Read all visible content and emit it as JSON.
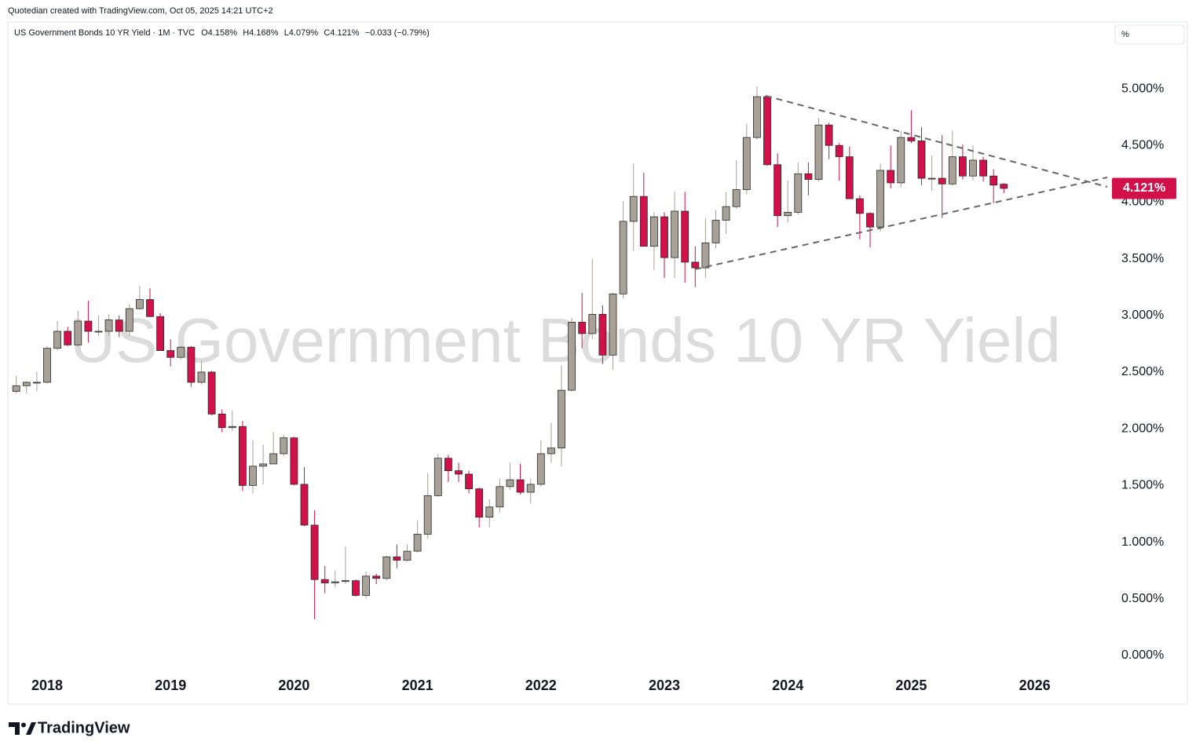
{
  "header": {
    "credit": "Quotedian created with TradingView.com, Oct 05, 2025 14:21 UTC+2",
    "footer_brand": "TradingView"
  },
  "chart_data": {
    "type": "candlestick",
    "legend": {
      "symbol": "US Government Bonds 10 YR Yield · 1M · TVC",
      "ohlc_labels": [
        "O4.158%",
        "H4.168%",
        "L4.079%",
        "C4.121%"
      ],
      "change": "−0.033 (−0.79%)"
    },
    "watermark": "US Government Bonds 10 YR Yield",
    "unit_label": "%",
    "last_price_label": "4.121%",
    "up_color": "#a8a197",
    "down_color": "#d2114a",
    "last_price_color": "#d2114a",
    "categories": [
      null,
      null,
      null,
      "2018",
      null,
      null,
      null,
      null,
      null,
      null,
      null,
      null,
      null,
      null,
      null,
      "2019",
      null,
      null,
      null,
      null,
      null,
      null,
      null,
      null,
      null,
      null,
      null,
      "2020",
      null,
      null,
      null,
      null,
      null,
      null,
      null,
      null,
      null,
      null,
      null,
      "2021",
      null,
      null,
      null,
      null,
      null,
      null,
      null,
      null,
      null,
      null,
      null,
      "2022",
      null,
      null,
      null,
      null,
      null,
      null,
      null,
      null,
      null,
      null,
      null,
      "2023",
      null,
      null,
      null,
      null,
      null,
      null,
      null,
      null,
      null,
      null,
      null,
      "2024",
      null,
      null,
      null,
      null,
      null,
      null,
      null,
      null,
      null,
      null,
      null,
      "2025",
      null,
      null,
      null,
      null,
      null,
      null,
      null,
      null,
      null,
      null,
      null,
      "2026"
    ],
    "series": [
      {
        "name": "US Government Bonds 10 YR Yield",
        "open": [
          2.33,
          2.38,
          2.41,
          2.41,
          2.71,
          2.86,
          2.74,
          2.95,
          2.86,
          2.86,
          2.96,
          2.86,
          3.06,
          3.14,
          2.99,
          2.69,
          2.63,
          2.72,
          2.41,
          2.5,
          2.13,
          2.01,
          2.02,
          1.5,
          1.67,
          1.69,
          1.78,
          1.92,
          1.51,
          1.15,
          0.67,
          0.64,
          0.66,
          0.66,
          0.53,
          0.7,
          0.68,
          0.87,
          0.84,
          0.92,
          1.07,
          1.41,
          1.74,
          1.63,
          1.6,
          1.47,
          1.22,
          1.31,
          1.49,
          1.55,
          1.44,
          1.51,
          1.78,
          1.83,
          2.34,
          2.94,
          2.84,
          3.01,
          2.65,
          3.19,
          3.83,
          4.05,
          3.61,
          3.87,
          3.51,
          3.92,
          3.47,
          3.42,
          3.64,
          3.84,
          3.96,
          4.11,
          4.57,
          4.93,
          4.33,
          3.88,
          3.91,
          4.25,
          4.2,
          4.68,
          4.5,
          4.4,
          4.03,
          3.9,
          3.78,
          4.28,
          4.17,
          4.57,
          4.54,
          4.21,
          4.21,
          4.16,
          4.4,
          4.23,
          4.37,
          4.23,
          4.158,
          null,
          null,
          null
        ],
        "high": [
          2.47,
          2.42,
          2.5,
          2.73,
          2.95,
          2.9,
          3.04,
          3.13,
          3.0,
          3.01,
          3.0,
          3.1,
          3.26,
          3.24,
          3.02,
          2.79,
          2.73,
          2.73,
          2.6,
          2.51,
          2.17,
          2.16,
          2.07,
          1.9,
          1.86,
          1.97,
          1.95,
          1.93,
          1.66,
          1.28,
          0.79,
          0.75,
          0.96,
          0.67,
          0.74,
          0.72,
          0.88,
          0.98,
          0.98,
          1.19,
          1.61,
          1.78,
          1.77,
          1.7,
          1.63,
          1.48,
          1.38,
          1.56,
          1.7,
          1.69,
          1.56,
          1.9,
          2.05,
          2.56,
          2.98,
          3.2,
          3.5,
          3.09,
          3.2,
          4.01,
          4.34,
          4.26,
          3.91,
          3.91,
          4.09,
          4.09,
          3.61,
          3.86,
          3.93,
          4.09,
          4.37,
          4.69,
          5.02,
          4.93,
          4.43,
          4.19,
          4.35,
          4.35,
          4.74,
          4.7,
          4.52,
          4.49,
          4.06,
          3.91,
          4.34,
          4.5,
          4.63,
          4.81,
          4.66,
          4.41,
          4.59,
          4.63,
          4.51,
          4.5,
          4.4,
          4.29,
          4.168,
          null,
          null,
          null
        ],
        "low": [
          2.31,
          2.31,
          2.33,
          2.4,
          2.69,
          2.73,
          2.73,
          2.76,
          2.82,
          2.82,
          2.81,
          2.82,
          3.05,
          2.99,
          2.69,
          2.55,
          2.61,
          2.37,
          2.39,
          2.12,
          1.97,
          1.98,
          1.45,
          1.43,
          1.51,
          1.69,
          1.76,
          1.5,
          1.14,
          0.32,
          0.55,
          0.6,
          0.63,
          0.52,
          0.5,
          0.63,
          0.66,
          0.77,
          0.83,
          0.91,
          1.03,
          1.4,
          1.53,
          1.53,
          1.43,
          1.13,
          1.13,
          1.26,
          1.46,
          1.42,
          1.34,
          1.49,
          1.7,
          1.67,
          2.33,
          2.71,
          2.79,
          2.57,
          2.52,
          3.15,
          3.57,
          3.61,
          3.4,
          3.33,
          3.33,
          3.29,
          3.25,
          3.33,
          3.59,
          3.72,
          3.94,
          4.07,
          4.55,
          4.32,
          3.78,
          3.82,
          3.89,
          4.06,
          4.18,
          4.38,
          4.19,
          4.03,
          3.67,
          3.6,
          3.74,
          4.12,
          4.13,
          4.52,
          4.15,
          4.1,
          3.86,
          4.14,
          4.2,
          4.19,
          4.18,
          3.99,
          4.079,
          null,
          null,
          null
        ],
        "close": [
          2.38,
          2.41,
          2.41,
          2.71,
          2.86,
          2.74,
          2.95,
          2.86,
          2.86,
          2.96,
          2.86,
          3.06,
          3.14,
          2.99,
          2.69,
          2.63,
          2.72,
          2.41,
          2.5,
          2.13,
          2.01,
          2.02,
          1.5,
          1.67,
          1.69,
          1.78,
          1.92,
          1.51,
          1.15,
          0.67,
          0.64,
          0.65,
          0.66,
          0.53,
          0.7,
          0.68,
          0.87,
          0.84,
          0.92,
          1.07,
          1.41,
          1.74,
          1.63,
          1.6,
          1.47,
          1.22,
          1.31,
          1.49,
          1.55,
          1.44,
          1.51,
          1.78,
          1.83,
          2.34,
          2.94,
          2.84,
          3.01,
          2.65,
          3.19,
          3.83,
          4.05,
          3.61,
          3.87,
          3.51,
          3.92,
          3.47,
          3.42,
          3.64,
          3.84,
          3.96,
          4.11,
          4.57,
          4.93,
          4.33,
          3.88,
          3.91,
          4.25,
          4.2,
          4.68,
          4.5,
          4.4,
          4.03,
          3.9,
          3.78,
          4.28,
          4.17,
          4.57,
          4.54,
          4.21,
          4.21,
          4.16,
          4.4,
          4.23,
          4.37,
          4.23,
          4.15,
          4.121,
          null,
          null,
          null
        ]
      }
    ],
    "ylim": [
      -0.139,
      5.589
    ],
    "yticks": [
      {
        "value": 0,
        "label": "0.000%"
      },
      {
        "value": 0.5,
        "label": "0.500%"
      },
      {
        "value": 1,
        "label": "1.000%"
      },
      {
        "value": 1.5,
        "label": "1.500%"
      },
      {
        "value": 2,
        "label": "2.000%"
      },
      {
        "value": 2.5,
        "label": "2.500%"
      },
      {
        "value": 3,
        "label": "3.000%"
      },
      {
        "value": 3.5,
        "label": "3.500%"
      },
      {
        "value": 4,
        "label": "4.000%"
      },
      {
        "value": 4.5,
        "label": "4.500%"
      },
      {
        "value": 5,
        "label": "5.000%"
      }
    ],
    "grid": false
  }
}
